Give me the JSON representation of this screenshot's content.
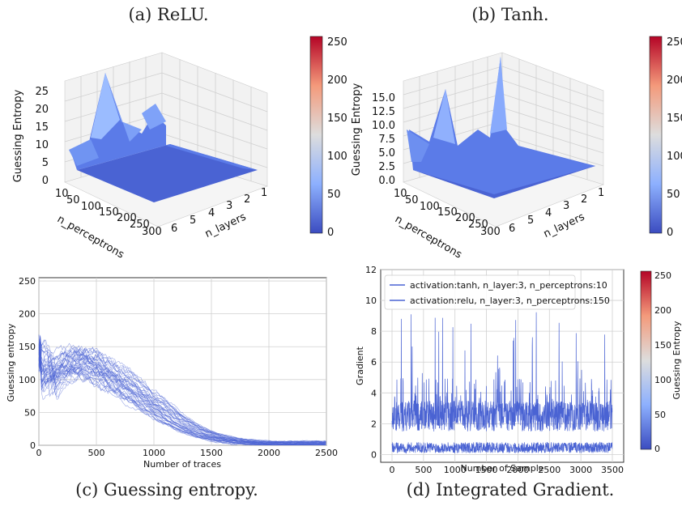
{
  "captions": {
    "a": "(a) ReLU.",
    "b": "(b) Tanh.",
    "c": "(c) Guessing entropy.",
    "d": "(d) Integrated Gradient."
  },
  "colorbar": {
    "label": "Guessing Entropy",
    "ticks": [
      "0",
      "50",
      "100",
      "150",
      "200",
      "250"
    ],
    "colormap": "coolwarm",
    "range": [
      0,
      255
    ]
  },
  "chart_data": [
    {
      "id": "a",
      "type": "surface3d",
      "zlabel": "Guessing Entropy",
      "xlabel": "n_perceptrons",
      "ylabel": "n_layers",
      "x_ticks": [
        "10",
        "50",
        "100",
        "150",
        "200",
        "250",
        "300"
      ],
      "y_ticks": [
        "1",
        "2",
        "3",
        "4",
        "5",
        "6"
      ],
      "z_ticks": [
        "0",
        "5",
        "10",
        "15",
        "20",
        "25"
      ],
      "zlim": [
        0,
        25
      ],
      "peak": {
        "z": 22
      }
    },
    {
      "id": "b",
      "type": "surface3d",
      "zlabel": "Guessing Entropy",
      "xlabel": "n_perceptrons",
      "ylabel": "n_layers",
      "x_ticks": [
        "10",
        "50",
        "100",
        "150",
        "200",
        "250",
        "300"
      ],
      "y_ticks": [
        "1",
        "2",
        "3",
        "4",
        "5",
        "6"
      ],
      "z_ticks": [
        "0.0",
        "2.5",
        "5.0",
        "7.5",
        "10.0",
        "12.5",
        "15.0"
      ],
      "zlim": [
        0,
        15
      ],
      "peaks": [
        {
          "z": 12
        },
        {
          "z": 16
        }
      ]
    },
    {
      "id": "c",
      "type": "line",
      "xlabel": "Number of traces",
      "ylabel": "Guessing entropy",
      "x_ticks": [
        "0",
        "500",
        "1000",
        "1500",
        "2000",
        "2500"
      ],
      "y_ticks": [
        "0",
        "50",
        "100",
        "150",
        "200",
        "250"
      ],
      "xlim": [
        0,
        2500
      ],
      "ylim": [
        0,
        255
      ],
      "grid": true,
      "mean_curve": {
        "x": [
          0,
          25,
          50,
          100,
          200,
          300,
          400,
          500,
          600,
          700,
          800,
          900,
          1000,
          1100,
          1200,
          1300,
          1400,
          1500,
          1600,
          1700,
          1800,
          1900,
          2000,
          2200,
          2500
        ],
        "y": [
          135,
          120,
          85,
          100,
          118,
          128,
          130,
          120,
          110,
          100,
          88,
          75,
          62,
          50,
          38,
          28,
          20,
          14,
          10,
          7,
          5,
          4,
          3,
          3,
          3
        ]
      },
      "num_series": 40
    },
    {
      "id": "d",
      "type": "line",
      "xlabel": "Number of Sample",
      "ylabel": "Gradient",
      "x_ticks": [
        "0",
        "500",
        "1000",
        "1500",
        "2000",
        "2500",
        "3000",
        "3500"
      ],
      "y_ticks": [
        "0",
        "2",
        "4",
        "6",
        "8",
        "10",
        "12"
      ],
      "xlim": [
        0,
        3500
      ],
      "ylim": [
        -0.5,
        12
      ],
      "grid": true,
      "legend_position": "top-left",
      "series": [
        {
          "name": "activation:tanh, n_layer:3, n_perceptrons:10",
          "band": [
            1.5,
            3.5
          ],
          "max_spike": 9.5
        },
        {
          "name": "activation:relu, n_layer:3, n_perceptrons:150",
          "band": [
            0.1,
            0.8
          ]
        }
      ]
    }
  ]
}
